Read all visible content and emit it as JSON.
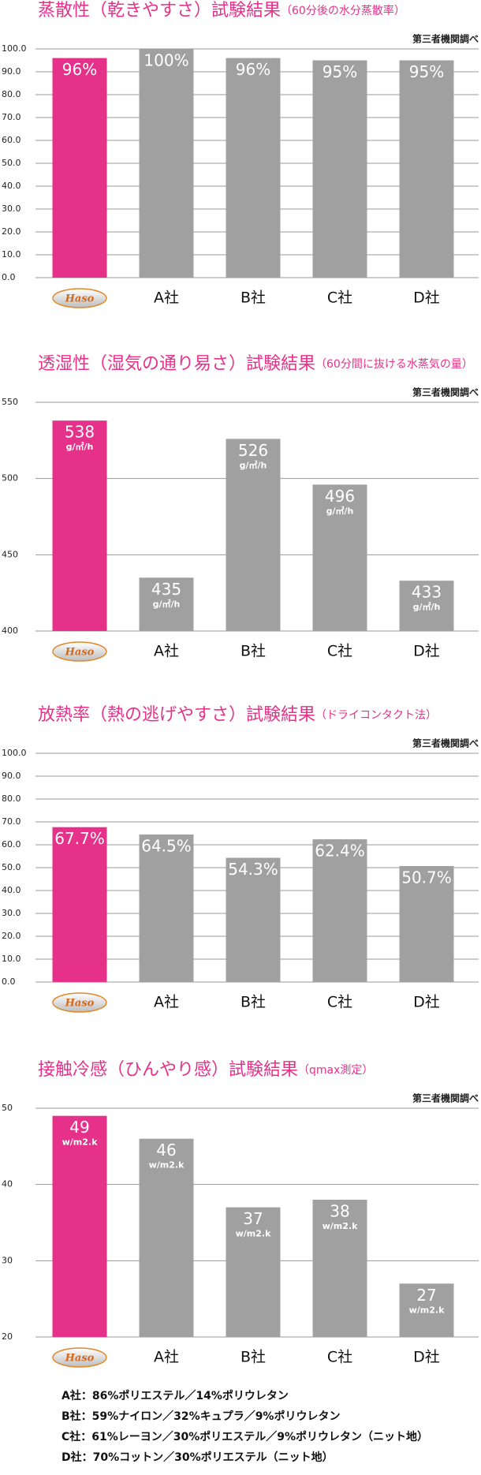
{
  "chart_data": [
    {
      "type": "bar",
      "title": "蒸散性（乾きやすさ）試験結果",
      "subtitle": "（60分後の水分蒸散率）",
      "source": "第三者機関調べ",
      "categories": [
        "Haso",
        "A社",
        "B社",
        "C社",
        "D社"
      ],
      "values": [
        96,
        100,
        96,
        95,
        95
      ],
      "value_labels": [
        "96%",
        "100%",
        "96%",
        "95%",
        "95%"
      ],
      "colors": [
        "#e5318a",
        "#a0a0a0",
        "#a0a0a0",
        "#a0a0a0",
        "#a0a0a0"
      ],
      "ylim": [
        0,
        100
      ],
      "yticks": [
        {
          "value": 0,
          "label": "0.0"
        },
        {
          "value": 10,
          "label": "10.0"
        },
        {
          "value": 20,
          "label": "20.0"
        },
        {
          "value": 30,
          "label": "30.0"
        },
        {
          "value": 40,
          "label": "40.0"
        },
        {
          "value": 50,
          "label": "50.0"
        },
        {
          "value": 60,
          "label": "60.0"
        },
        {
          "value": 70,
          "label": "70.0"
        },
        {
          "value": 80,
          "label": "80.0"
        },
        {
          "value": 90,
          "label": "90.0"
        },
        {
          "value": 100,
          "label": "100.0"
        }
      ],
      "grid": true
    },
    {
      "type": "bar",
      "title": "透湿性（湿気の通り易さ）試験結果",
      "subtitle": "（60分間に抜ける水蒸気の量）",
      "source": "第三者機関調べ",
      "categories": [
        "Haso",
        "A社",
        "B社",
        "C社",
        "D社"
      ],
      "values": [
        538,
        435,
        526,
        496,
        433
      ],
      "unit": "g/㎡/h",
      "colors": [
        "#e5318a",
        "#a0a0a0",
        "#a0a0a0",
        "#a0a0a0",
        "#a0a0a0"
      ],
      "ylim": [
        400,
        550
      ],
      "yticks": [
        400,
        450,
        500,
        550
      ],
      "grid": true
    },
    {
      "type": "bar",
      "title": "放熱率（熱の逃げやすさ）試験結果",
      "subtitle": "（ドライコンタクト法）",
      "source": "第三者機関調べ",
      "categories": [
        "Haso",
        "A社",
        "B社",
        "C社",
        "D社"
      ],
      "values": [
        67.7,
        64.5,
        54.3,
        62.4,
        50.7
      ],
      "value_labels": [
        "67.7%",
        "64.5%",
        "54.3%",
        "62.4%",
        "50.7%"
      ],
      "colors": [
        "#e5318a",
        "#a0a0a0",
        "#a0a0a0",
        "#a0a0a0",
        "#a0a0a0"
      ],
      "ylim": [
        0,
        100
      ],
      "yticks": [
        {
          "value": 0,
          "label": "0.0"
        },
        {
          "value": 10,
          "label": "10.0"
        },
        {
          "value": 20,
          "label": "20.0"
        },
        {
          "value": 30,
          "label": "30.0"
        },
        {
          "value": 40,
          "label": "40.0"
        },
        {
          "value": 50,
          "label": "50.0"
        },
        {
          "value": 60,
          "label": "60.0"
        },
        {
          "value": 70,
          "label": "70.0"
        },
        {
          "value": 80,
          "label": "80.0"
        },
        {
          "value": 90,
          "label": "90.0"
        },
        {
          "value": 100,
          "label": "100.0"
        }
      ],
      "grid": true
    },
    {
      "type": "bar",
      "title": "接触冷感（ひんやり感）試験結果",
      "subtitle": "（qmax測定）",
      "source": "第三者機関調べ",
      "categories": [
        "Haso",
        "A社",
        "B社",
        "C社",
        "D社"
      ],
      "values": [
        49,
        46,
        37,
        38,
        27
      ],
      "unit": "w/m2.k",
      "colors": [
        "#e5318a",
        "#a0a0a0",
        "#a0a0a0",
        "#a0a0a0",
        "#a0a0a0"
      ],
      "ylim": [
        20,
        50
      ],
      "yticks": [
        20,
        30,
        40,
        50
      ],
      "grid": true
    }
  ],
  "notes": [
    "A社：86%ポリエステル／14%ポリウレタン",
    "B社：59%ナイロン／32%キュプラ／9%ポリウレタン",
    "C社：61%レーヨン／30%ポリエステル／9%ポリウレタン（ニット地）",
    "D社：70%コットン／30%ポリエステル（ニット地）"
  ]
}
